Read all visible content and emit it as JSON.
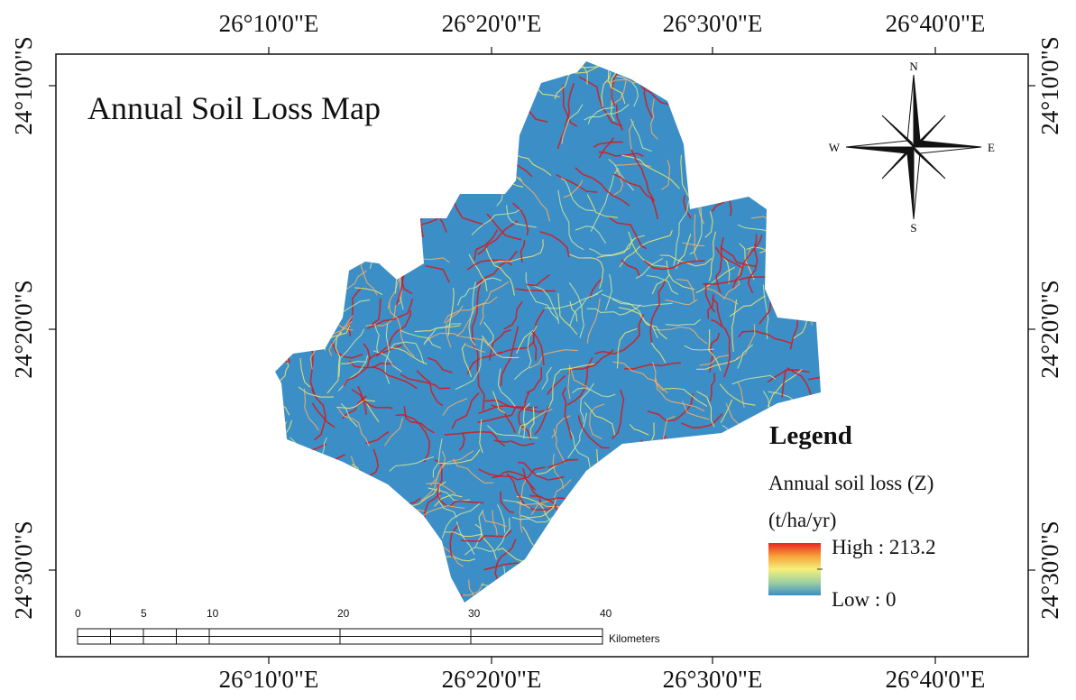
{
  "title": "Annual Soil Loss Map",
  "top_labels": [
    "26°10'0\"E",
    "26°20'0\"E",
    "26°30'0\"E",
    "26°40'0\"E"
  ],
  "bottom_labels": [
    "26°10'0\"E",
    "26°20'0\"E",
    "26°30'0\"E",
    "26°40'0\"E"
  ],
  "left_labels": [
    "24°10'0\"S",
    "24°20'0\"S",
    "24°30'0\"S"
  ],
  "right_labels": [
    "24°10'0\"S",
    "24°20'0\"S",
    "24°30'0\"S"
  ],
  "compass": {
    "north": "N",
    "east": "E",
    "south": "S",
    "west": "W"
  },
  "legend": {
    "title": "Legend",
    "field": "Annual soil loss (Z)",
    "unit": "(t/ha/yr)",
    "high": "High : 213.2",
    "low": "Low : 0"
  },
  "scale_bar": {
    "ticks": [
      "0",
      "5",
      "10",
      "20",
      "30",
      "40"
    ],
    "unit": "Kilometers"
  }
}
